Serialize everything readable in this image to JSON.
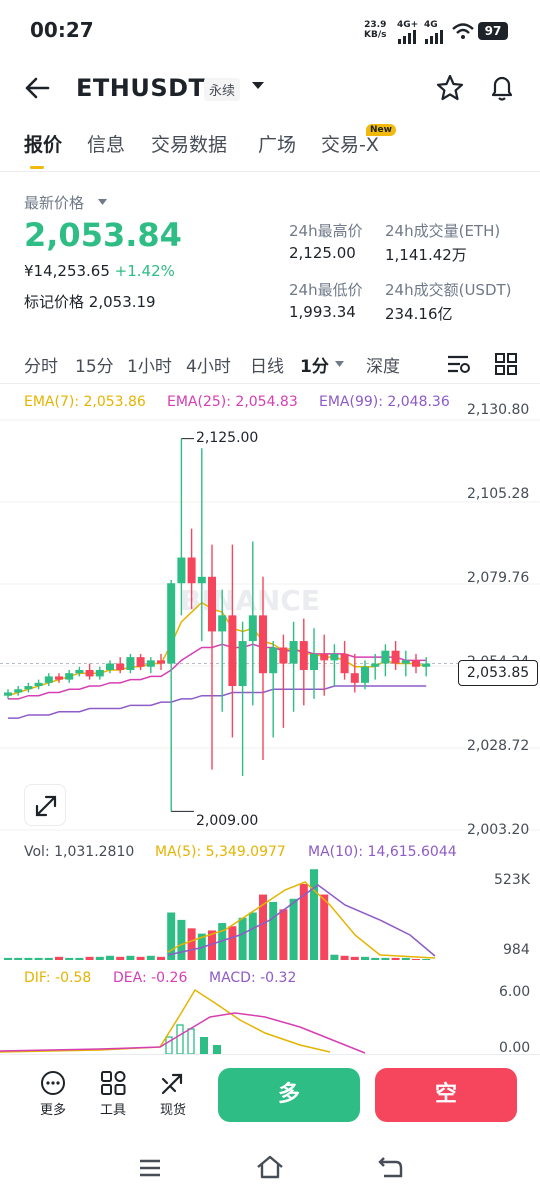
{
  "status_bar": {
    "time": "00:27",
    "net_speed": "23.9",
    "net_unit": "KB/s",
    "signal1": "4G+",
    "signal2": "4G",
    "battery": "97"
  },
  "header": {
    "symbol": "ETHUSDT",
    "contract_type": "永续"
  },
  "tabs": [
    {
      "label": "报价",
      "active": true
    },
    {
      "label": "信息"
    },
    {
      "label": "交易数据"
    },
    {
      "label": "广场"
    },
    {
      "label": "交易-X",
      "badge": "New"
    }
  ],
  "price_panel": {
    "last_price_label": "最新价格",
    "last_price": "2,053.84",
    "cny_price": "¥14,253.65",
    "change": "+1.42%",
    "mark_label": "标记价格",
    "mark_price": "2,053.19",
    "high_label": "24h最高价",
    "high_value": "2,125.00",
    "low_label": "24h最低价",
    "low_value": "1,993.34",
    "vol_eth_label": "24h成交量(ETH)",
    "vol_eth_value": "1,141.42万",
    "vol_usdt_label": "24h成交额(USDT)",
    "vol_usdt_value": "234.16亿"
  },
  "intervals": [
    {
      "label": "分时"
    },
    {
      "label": "15分"
    },
    {
      "label": "1小时"
    },
    {
      "label": "4小时"
    },
    {
      "label": "日线"
    },
    {
      "label": "1分",
      "active": true
    },
    {
      "label": "深度"
    }
  ],
  "ema": {
    "ema7": "EMA(7): 2,053.86",
    "ema25": "EMA(25): 2,054.83",
    "ema99": "EMA(99): 2,048.36"
  },
  "colors": {
    "up": "#2ebd85",
    "down": "#f6465d",
    "ema7": "#e5b400",
    "ema25": "#d63fb3",
    "ema99": "#8e5bc8",
    "accent": "#f0b90b"
  },
  "chart_data": {
    "type": "candlestick",
    "y_ticks": [
      "2,130.80",
      "2,105.28",
      "2,079.76",
      "2,054.24",
      "2,028.72",
      "2,003.20"
    ],
    "ylim": [
      2003.2,
      2130.8
    ],
    "high_marker": "2,125.00",
    "low_marker": "2,009.00",
    "current_price": "2,053.85",
    "watermark": "BINANCE",
    "candles": [
      [
        2045,
        2047,
        2044,
        2046
      ],
      [
        2046,
        2048,
        2045,
        2047
      ],
      [
        2047,
        2049,
        2046,
        2048
      ],
      [
        2048,
        2050,
        2047,
        2049
      ],
      [
        2049,
        2052,
        2048,
        2051
      ],
      [
        2051,
        2052,
        2049,
        2050
      ],
      [
        2050,
        2053,
        2049,
        2052
      ],
      [
        2052,
        2054,
        2051,
        2053
      ],
      [
        2053,
        2055,
        2050,
        2051
      ],
      [
        2051,
        2054,
        2050,
        2053
      ],
      [
        2053,
        2056,
        2052,
        2055
      ],
      [
        2055,
        2057,
        2052,
        2053
      ],
      [
        2053,
        2058,
        2052,
        2057
      ],
      [
        2057,
        2058,
        2053,
        2054
      ],
      [
        2054,
        2057,
        2052,
        2056
      ],
      [
        2056,
        2058,
        2053,
        2055
      ],
      [
        2055,
        2081,
        2009,
        2080
      ],
      [
        2080,
        2125,
        2070,
        2088
      ],
      [
        2088,
        2097,
        2072,
        2080
      ],
      [
        2080,
        2122,
        2062,
        2082
      ],
      [
        2082,
        2092,
        2022,
        2065
      ],
      [
        2065,
        2078,
        2040,
        2070
      ],
      [
        2070,
        2092,
        2032,
        2048
      ],
      [
        2048,
        2068,
        2020,
        2062
      ],
      [
        2062,
        2093,
        2042,
        2070
      ],
      [
        2070,
        2082,
        2025,
        2052
      ],
      [
        2052,
        2062,
        2032,
        2060
      ],
      [
        2060,
        2064,
        2035,
        2055
      ],
      [
        2055,
        2068,
        2040,
        2062
      ],
      [
        2062,
        2069,
        2042,
        2053
      ],
      [
        2053,
        2066,
        2044,
        2058
      ],
      [
        2058,
        2064,
        2045,
        2056
      ],
      [
        2056,
        2061,
        2048,
        2058
      ],
      [
        2058,
        2062,
        2050,
        2052
      ],
      [
        2052,
        2058,
        2046,
        2049
      ],
      [
        2049,
        2056,
        2047,
        2054
      ],
      [
        2054,
        2058,
        2050,
        2055
      ],
      [
        2055,
        2061,
        2051,
        2059
      ],
      [
        2059,
        2062,
        2053,
        2055
      ],
      [
        2055,
        2059,
        2051,
        2056
      ],
      [
        2056,
        2058,
        2052,
        2054
      ],
      [
        2054,
        2057,
        2051,
        2055
      ]
    ],
    "ema7_series": [
      2045,
      2046,
      2047,
      2048,
      2049,
      2050,
      2051,
      2052,
      2052,
      2052,
      2053,
      2053,
      2054,
      2054,
      2055,
      2055,
      2061,
      2068,
      2071,
      2074,
      2072,
      2071,
      2066,
      2065,
      2066,
      2062,
      2061,
      2059,
      2060,
      2058,
      2058,
      2057,
      2057,
      2056,
      2054,
      2054,
      2054,
      2056,
      2055,
      2055,
      2055,
      2054
    ],
    "ema25_series": [
      2044,
      2044,
      2045,
      2045,
      2046,
      2046,
      2047,
      2047,
      2048,
      2048,
      2049,
      2049,
      2050,
      2050,
      2051,
      2051,
      2053,
      2056,
      2058,
      2060,
      2060,
      2061,
      2060,
      2060,
      2061,
      2060,
      2060,
      2059,
      2059,
      2059,
      2058,
      2058,
      2058,
      2058,
      2057,
      2057,
      2057,
      2057,
      2057,
      2056,
      2056,
      2056
    ],
    "ema99_series": [
      2038,
      2038,
      2039,
      2039,
      2039,
      2040,
      2040,
      2040,
      2041,
      2041,
      2041,
      2041,
      2042,
      2042,
      2042,
      2043,
      2043,
      2044,
      2044,
      2045,
      2045,
      2045,
      2046,
      2046,
      2046,
      2046,
      2047,
      2047,
      2047,
      2047,
      2047,
      2047,
      2048,
      2048,
      2048,
      2048,
      2048,
      2048,
      2048,
      2048,
      2048,
      2048
    ]
  },
  "volume": {
    "vol_label": "Vol: 1,031.2810",
    "ma5_label": "MA(5): 5,349.0977",
    "ma10_label": "MA(10): 14,615.6044",
    "top_tick": "523K",
    "bottom_tick": "984"
  },
  "macd": {
    "dif_label": "DIF: -0.58",
    "dea_label": "DEA: -0.26",
    "macd_label": "MACD: -0.32",
    "top_tick": "6.00",
    "bottom_tick": "0.00"
  },
  "bottom_bar": {
    "more": "更多",
    "tools": "工具",
    "spot": "现货",
    "long": "多",
    "short": "空"
  }
}
